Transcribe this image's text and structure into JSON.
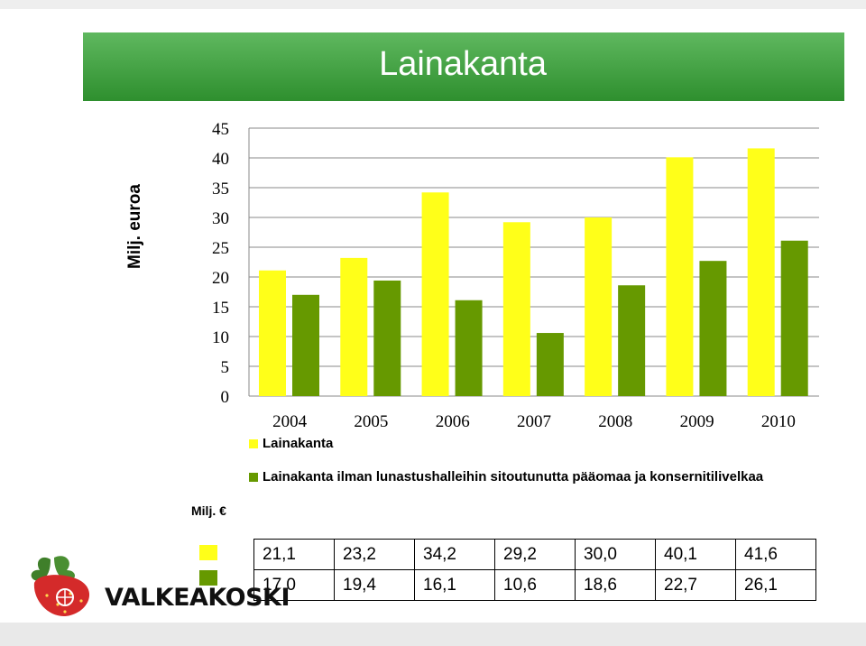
{
  "title": "Lainakanta",
  "colors": {
    "series1": "#ffff19",
    "series2": "#669900",
    "header": "#3c9a3c"
  },
  "chart_data": {
    "type": "bar",
    "ylabel": "Milj. euroa",
    "ylim": [
      0,
      45
    ],
    "yticks": [
      0,
      5,
      10,
      15,
      20,
      25,
      30,
      35,
      40,
      45
    ],
    "categories": [
      "2004",
      "2005",
      "2006",
      "2007",
      "2008",
      "2009",
      "2010"
    ],
    "series": [
      {
        "name": "Lainakanta",
        "values": [
          21.1,
          23.2,
          34.2,
          29.2,
          30.0,
          40.1,
          41.6
        ]
      },
      {
        "name": "Lainakanta ilman lunastushalleihin sitoutunutta pääomaa ja konsernitilivelkaa",
        "values": [
          17.0,
          19.4,
          16.1,
          10.6,
          18.6,
          22.7,
          26.1
        ]
      }
    ],
    "grid": true,
    "legend": "bottom"
  },
  "table": {
    "unit": "Milj. €",
    "rows": [
      [
        "21,1",
        "23,2",
        "34,2",
        "29,2",
        "30,0",
        "40,1",
        "41,6"
      ],
      [
        "17,0",
        "19,4",
        "16,1",
        "10,6",
        "18,6",
        "22,7",
        "26,1"
      ]
    ]
  },
  "logo": {
    "text": "VALKEAKOSKI",
    "icons": [
      "strawberry-icon",
      "wheel-icon"
    ]
  }
}
